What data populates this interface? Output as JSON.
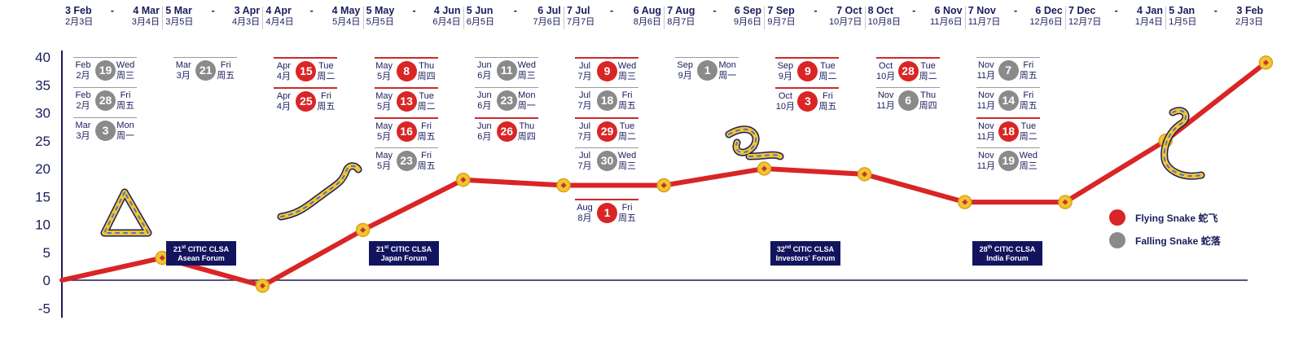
{
  "chart_data": {
    "type": "line",
    "x": [
      "3 Feb",
      "5 Mar",
      "4 Apr",
      "5 May",
      "5 Jun",
      "7 Jul",
      "7 Aug",
      "7 Sep",
      "8 Oct",
      "7 Nov",
      "7 Dec",
      "5 Jan",
      "3 Feb"
    ],
    "series": [
      {
        "values": [
          0,
          4,
          -1,
          9,
          18,
          17,
          17,
          20,
          19,
          14,
          14,
          25,
          39
        ]
      }
    ],
    "ylim": [
      -5,
      40
    ],
    "yticks": [
      -5,
      0,
      5,
      10,
      15,
      20,
      25,
      30,
      35,
      40
    ],
    "grid": false,
    "legend_position": "right",
    "legend": [
      {
        "label": "Flying Snake 蛇飞",
        "color": "#d92525"
      },
      {
        "label": "Falling Snake 蛇落",
        "color": "#8a8a8a"
      }
    ]
  },
  "colors": {
    "line": "#d92525",
    "axis": "#1a1d5c",
    "marker": "#f4c430",
    "forum_bg": "#12155e"
  },
  "periods": [
    {
      "from_en": "3 Feb",
      "to_en": "4 Mar",
      "from_cn": "2月3日",
      "to_cn": "3月4日"
    },
    {
      "from_en": "5 Mar",
      "to_en": "3 Apr",
      "from_cn": "3月5日",
      "to_cn": "4月3日"
    },
    {
      "from_en": "4 Apr",
      "to_en": "4 May",
      "from_cn": "4月4日",
      "to_cn": "5月4日"
    },
    {
      "from_en": "5 May",
      "to_en": "4 Jun",
      "from_cn": "5月5日",
      "to_cn": "6月4日"
    },
    {
      "from_en": "5 Jun",
      "to_en": "6 Jul",
      "from_cn": "6月5日",
      "to_cn": "7月6日"
    },
    {
      "from_en": "7 Jul",
      "to_en": "6 Aug",
      "from_cn": "7月7日",
      "to_cn": "8月6日"
    },
    {
      "from_en": "7 Aug",
      "to_en": "6 Sep",
      "from_cn": "8月7日",
      "to_cn": "9月6日"
    },
    {
      "from_en": "7 Sep",
      "to_en": "7 Oct",
      "from_cn": "9月7日",
      "to_cn": "10月7日"
    },
    {
      "from_en": "8 Oct",
      "to_en": "6 Nov",
      "from_cn": "10月8日",
      "to_cn": "11月6日"
    },
    {
      "from_en": "7 Nov",
      "to_en": "6 Dec",
      "from_cn": "11月7日",
      "to_cn": "12月6日"
    },
    {
      "from_en": "7 Dec",
      "to_en": "4 Jan",
      "from_cn": "12月7日",
      "to_cn": "1月4日"
    },
    {
      "from_en": "5 Jan",
      "to_en": "3 Feb",
      "from_cn": "1月5日",
      "to_cn": "2月3日"
    }
  ],
  "entries": [
    {
      "col": 0,
      "month": "Feb",
      "month_cn": "2月",
      "day": "19",
      "dow": "Wed",
      "dow_cn": "周三",
      "kind": "grey"
    },
    {
      "col": 0,
      "month": "Feb",
      "month_cn": "2月",
      "day": "28",
      "dow": "Fri",
      "dow_cn": "周五",
      "kind": "grey"
    },
    {
      "col": 0,
      "month": "Mar",
      "month_cn": "3月",
      "day": "3",
      "dow": "Mon",
      "dow_cn": "周一",
      "kind": "grey"
    },
    {
      "col": 1,
      "month": "Mar",
      "month_cn": "3月",
      "day": "21",
      "dow": "Fri",
      "dow_cn": "周五",
      "kind": "grey"
    },
    {
      "col": 2,
      "month": "Apr",
      "month_cn": "4月",
      "day": "15",
      "dow": "Tue",
      "dow_cn": "周二",
      "kind": "red"
    },
    {
      "col": 2,
      "month": "Apr",
      "month_cn": "4月",
      "day": "25",
      "dow": "Fri",
      "dow_cn": "周五",
      "kind": "red"
    },
    {
      "col": 3,
      "month": "May",
      "month_cn": "5月",
      "day": "8",
      "dow": "Thu",
      "dow_cn": "周四",
      "kind": "red"
    },
    {
      "col": 3,
      "month": "May",
      "month_cn": "5月",
      "day": "13",
      "dow": "Tue",
      "dow_cn": "周二",
      "kind": "red"
    },
    {
      "col": 3,
      "month": "May",
      "month_cn": "5月",
      "day": "16",
      "dow": "Fri",
      "dow_cn": "周五",
      "kind": "red"
    },
    {
      "col": 3,
      "month": "May",
      "month_cn": "5月",
      "day": "23",
      "dow": "Fri",
      "dow_cn": "周五",
      "kind": "grey"
    },
    {
      "col": 4,
      "month": "Jun",
      "month_cn": "6月",
      "day": "11",
      "dow": "Wed",
      "dow_cn": "周三",
      "kind": "grey"
    },
    {
      "col": 4,
      "month": "Jun",
      "month_cn": "6月",
      "day": "23",
      "dow": "Mon",
      "dow_cn": "周一",
      "kind": "grey"
    },
    {
      "col": 4,
      "month": "Jun",
      "month_cn": "6月",
      "day": "26",
      "dow": "Thu",
      "dow_cn": "周四",
      "kind": "red"
    },
    {
      "col": 5,
      "month": "Jul",
      "month_cn": "7月",
      "day": "9",
      "dow": "Wed",
      "dow_cn": "周三",
      "kind": "red"
    },
    {
      "col": 5,
      "month": "Jul",
      "month_cn": "7月",
      "day": "18",
      "dow": "Fri",
      "dow_cn": "周五",
      "kind": "grey"
    },
    {
      "col": 5,
      "month": "Jul",
      "month_cn": "7月",
      "day": "29",
      "dow": "Tue",
      "dow_cn": "周二",
      "kind": "red"
    },
    {
      "col": 5,
      "month": "Jul",
      "month_cn": "7月",
      "day": "30",
      "dow": "Wed",
      "dow_cn": "周三",
      "kind": "grey"
    },
    {
      "col": 5,
      "month": "Aug",
      "month_cn": "8月",
      "day": "1",
      "dow": "Fri",
      "dow_cn": "周五",
      "kind": "red",
      "below": true
    },
    {
      "col": 6,
      "month": "Sep",
      "month_cn": "9月",
      "day": "1",
      "dow": "Mon",
      "dow_cn": "周一",
      "kind": "grey"
    },
    {
      "col": 7,
      "month": "Sep",
      "month_cn": "9月",
      "day": "9",
      "dow": "Tue",
      "dow_cn": "周二",
      "kind": "red"
    },
    {
      "col": 7,
      "month": "Oct",
      "month_cn": "10月",
      "day": "3",
      "dow": "Fri",
      "dow_cn": "周五",
      "kind": "red"
    },
    {
      "col": 8,
      "month": "Oct",
      "month_cn": "10月",
      "day": "28",
      "dow": "Tue",
      "dow_cn": "周二",
      "kind": "red"
    },
    {
      "col": 8,
      "month": "Nov",
      "month_cn": "11月",
      "day": "6",
      "dow": "Thu",
      "dow_cn": "周四",
      "kind": "grey"
    },
    {
      "col": 9,
      "month": "Nov",
      "month_cn": "11月",
      "day": "7",
      "dow": "Fri",
      "dow_cn": "周五",
      "kind": "grey"
    },
    {
      "col": 9,
      "month": "Nov",
      "month_cn": "11月",
      "day": "14",
      "dow": "Fri",
      "dow_cn": "周五",
      "kind": "grey"
    },
    {
      "col": 9,
      "month": "Nov",
      "month_cn": "11月",
      "day": "18",
      "dow": "Tue",
      "dow_cn": "周二",
      "kind": "red"
    },
    {
      "col": 9,
      "month": "Nov",
      "month_cn": "11月",
      "day": "19",
      "dow": "Wed",
      "dow_cn": "周三",
      "kind": "grey"
    }
  ],
  "forums": [
    {
      "num": "21",
      "sup": "st",
      "line1": "CITIC CLSA",
      "line2": "Asean Forum"
    },
    {
      "num": "21",
      "sup": "st",
      "line1": "CITIC CLSA",
      "line2": "Japan Forum"
    },
    {
      "num": "32",
      "sup": "nd",
      "line1": "CITIC CLSA",
      "line2": "Investors' Forum"
    },
    {
      "num": "28",
      "sup": "th",
      "line1": "CITIC CLSA",
      "line2": "India Forum"
    }
  ]
}
